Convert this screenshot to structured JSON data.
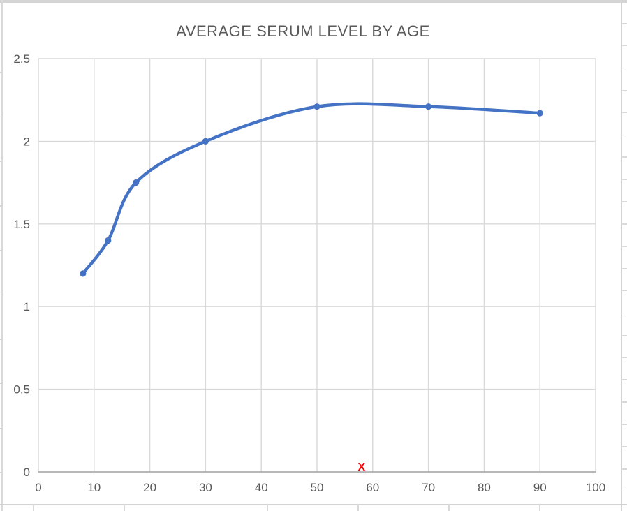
{
  "chart_data": {
    "type": "scatter",
    "subtype": "smooth-line-with-markers",
    "title": "AVERAGE SERUM LEVEL BY AGE",
    "x": [
      8,
      12.5,
      17.5,
      30,
      50,
      70,
      90
    ],
    "y": [
      1.2,
      1.4,
      1.75,
      2.0,
      2.21,
      2.21,
      2.17
    ],
    "xlim": [
      0,
      100
    ],
    "ylim": [
      0,
      2.5
    ],
    "x_tick_values": [
      0,
      10,
      20,
      30,
      40,
      50,
      60,
      70,
      80,
      90,
      100
    ],
    "x_ticks": [
      "0",
      "10",
      "20",
      "30",
      "40",
      "50",
      "60",
      "70",
      "80",
      "90",
      "100"
    ],
    "y_tick_values": [
      0,
      0.5,
      1,
      1.5,
      2,
      2.5
    ],
    "y_ticks": [
      "0",
      "0.5",
      "1",
      "1.5",
      "2",
      "2.5"
    ],
    "xlabel": "",
    "ylabel": "",
    "grid": true,
    "legend": false,
    "annotation": {
      "label": "X",
      "x": 58,
      "y": 0.03
    }
  },
  "colors": {
    "line": "#4472c4",
    "marker": "#4472c4",
    "gridline": "#d9d9d9",
    "axis_line": "#b7b7b7",
    "title_text": "#595959",
    "tick_text": "#595959",
    "annotation_text": "#fe0000",
    "sheet_gridline": "#d6d6d6"
  }
}
